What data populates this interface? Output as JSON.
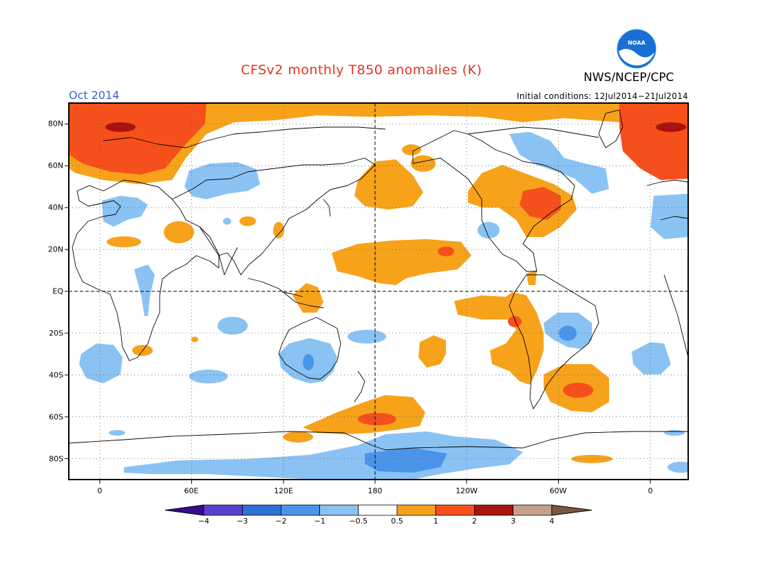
{
  "title": "CFSv2 monthly T850 anomalies (K)",
  "agency": "NWS/NCEP/CPC",
  "month_label": "Oct 2014",
  "initial_conditions": "Initial conditions: 12Jul2014−21Jul2014",
  "logo_text": "NOAA",
  "lat_labels": [
    "80N",
    "60N",
    "40N",
    "20N",
    "EQ",
    "20S",
    "40S",
    "60S",
    "80S"
  ],
  "lon_labels": [
    "0",
    "60E",
    "120E",
    "180",
    "120W",
    "60W",
    "0"
  ],
  "colorbar": {
    "labels": [
      "−4",
      "−3",
      "−2",
      "−1",
      "−0.5",
      "0.5",
      "1",
      "2",
      "3",
      "4"
    ],
    "colors": [
      "#3a0a8e",
      "#5a3fd1",
      "#2f6fd6",
      "#4a95ea",
      "#8ac2f3",
      "#ffffff",
      "#f7a21b",
      "#f5501c",
      "#a8130f",
      "#c7a08a",
      "#7a5545"
    ],
    "level_meanings": [
      "< -4",
      "-4 to -3",
      "-3 to -2",
      "-2 to -1",
      "-1 to -0.5",
      "-0.5 to 0.5",
      "0.5 to 1",
      "1 to 2",
      "2 to 3",
      "3 to 4",
      "> 4"
    ]
  },
  "map": {
    "projection": "cylindrical equidistant",
    "lon_range": "-20 to 20 (wrapping 0E through 180 to 0)",
    "lat_range": "90S to 90N",
    "grid": "dotted, every 60 degrees longitude and 20 degrees latitude",
    "reference_lines": [
      "equator",
      "180 meridian"
    ]
  }
}
